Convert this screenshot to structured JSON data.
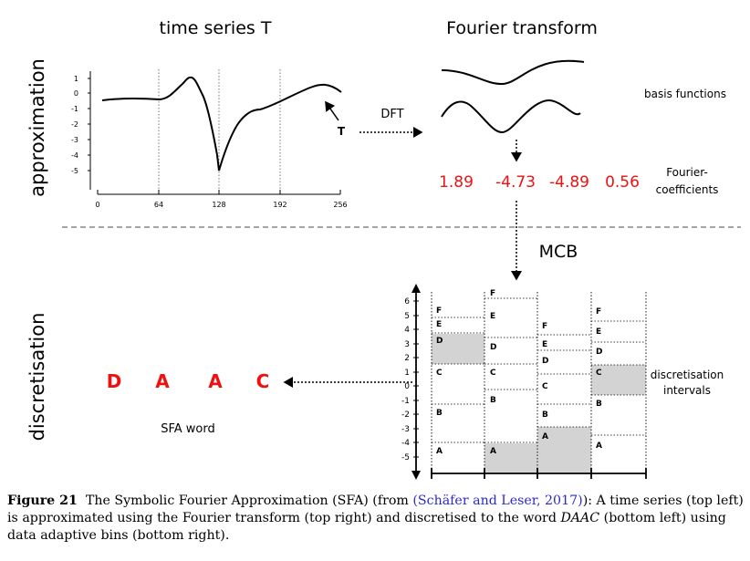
{
  "labels": {
    "time_series_title": "time series T",
    "fourier_title": "Fourier transform",
    "approximation": "approximation",
    "discretisation": "discretisation",
    "dft": "DFT",
    "t_marker": "T",
    "basis_functions": "basis functions",
    "fourier_coefficients_line1": "Fourier-",
    "fourier_coefficients_line2": "coefficients",
    "mcb": "MCB",
    "sfa_word_label": "SFA word",
    "discretisation_intervals_line1": "discretisation",
    "discretisation_intervals_line2": "intervals"
  },
  "coefficients": [
    "1.89",
    "-4.73",
    "-4.89",
    "0.56"
  ],
  "sfa_word": [
    "D",
    "A",
    "A",
    "C"
  ],
  "time_series_axes": {
    "y_ticks": [
      "1",
      "0",
      "-1",
      "-2",
      "-3",
      "-4",
      "-5"
    ],
    "x_ticks": [
      "0",
      "64",
      "128",
      "192",
      "256"
    ]
  },
  "mcb_axis": {
    "ticks": [
      "6",
      "5",
      "4",
      "3",
      "2",
      "1",
      "0",
      "-1",
      "-2",
      "-3",
      "-4",
      "-5"
    ]
  },
  "mcb_columns": [
    {
      "letters": [
        "F",
        "E",
        "D",
        "C",
        "B",
        "A"
      ],
      "highlight": "D"
    },
    {
      "letters": [
        "F",
        "E",
        "D",
        "C",
        "B",
        "A"
      ],
      "highlight": "A"
    },
    {
      "letters": [
        "F",
        "E",
        "D",
        "C",
        "B",
        "A"
      ],
      "highlight": "A"
    },
    {
      "letters": [
        "F",
        "E",
        "D",
        "C",
        "B",
        "A"
      ],
      "highlight": "C"
    }
  ],
  "caption": {
    "label": "Figure 21",
    "text1": "The Symbolic Fourier Approximation (SFA) (from ",
    "citation": "(Schäfer and Leser, 2017)",
    "text2": "): A time series (top left) is approximated using the Fourier transform (top right) and discretised to the word ",
    "word": "DAAC",
    "text3": " (bottom left) using data adaptive bins (bottom right)."
  },
  "colors": {
    "coefficient_red": "#ee1111",
    "highlight_gray": "#d3d3d3",
    "citation_blue": "#2a2ad0"
  }
}
